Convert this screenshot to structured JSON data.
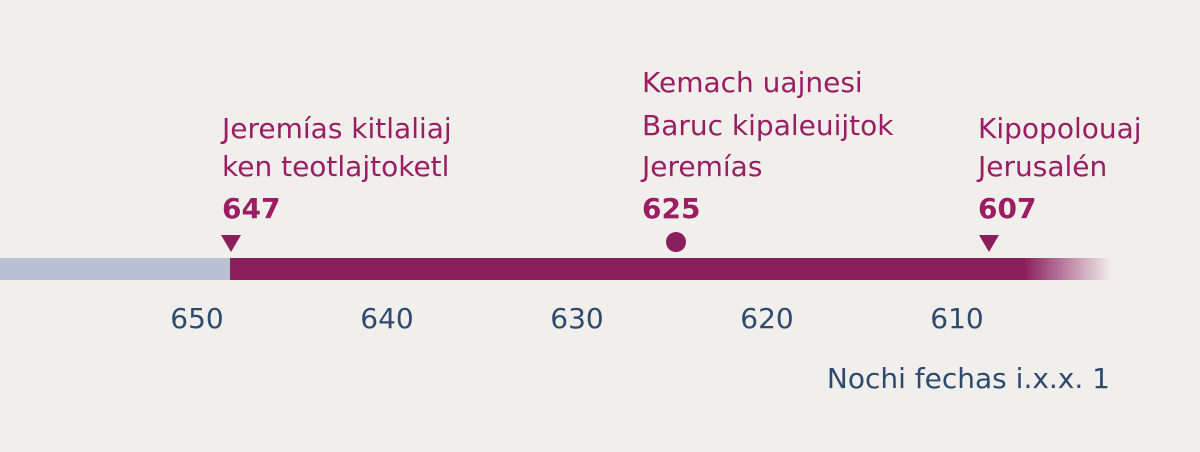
{
  "events": [
    {
      "lines": [
        "Jeremías kitlaliaj",
        "ken teotlajtoketl"
      ],
      "year": 647
    },
    {
      "lines": [
        "Kemach uajnesi",
        "Baruc kipaleuijtok",
        "Jeremías"
      ],
      "year": 625
    },
    {
      "lines": [
        "Kipopolouaj",
        "Jerusalén"
      ],
      "year": 607
    }
  ],
  "axis": {
    "ticks": [
      650,
      640,
      630,
      620,
      610
    ],
    "note": "Nochi fechas i.x.x. 1"
  }
}
